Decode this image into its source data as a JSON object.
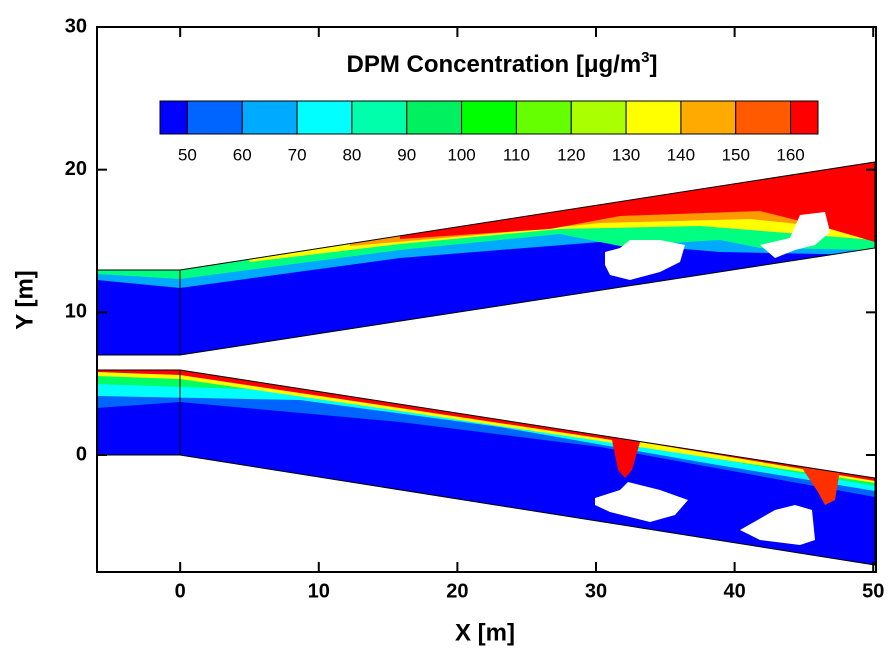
{
  "chart_data": {
    "type": "contour",
    "title": "DPM Concentration [μg/m",
    "title_superscript": "3",
    "title_end": "]",
    "x_label": "X [m]",
    "y_label": "Y [m]",
    "xlim": [
      -6,
      50.2
    ],
    "ylim": [
      -8.2,
      30
    ],
    "xticks": [
      0,
      10,
      20,
      30,
      40,
      50
    ],
    "yticks": [
      0,
      10,
      20,
      30
    ],
    "colorbar": {
      "range": [
        45,
        165
      ],
      "ticks": [
        50,
        60,
        70,
        80,
        90,
        100,
        110,
        120,
        130,
        140,
        150,
        160
      ],
      "colors": [
        "#0000ff",
        "#0064ff",
        "#00aaff",
        "#00ffff",
        "#00ffaa",
        "#00f060",
        "#00ff00",
        "#66ff00",
        "#aaff00",
        "#ffff00",
        "#ffaa00",
        "#ff5a00",
        "#ff0000"
      ]
    }
  }
}
